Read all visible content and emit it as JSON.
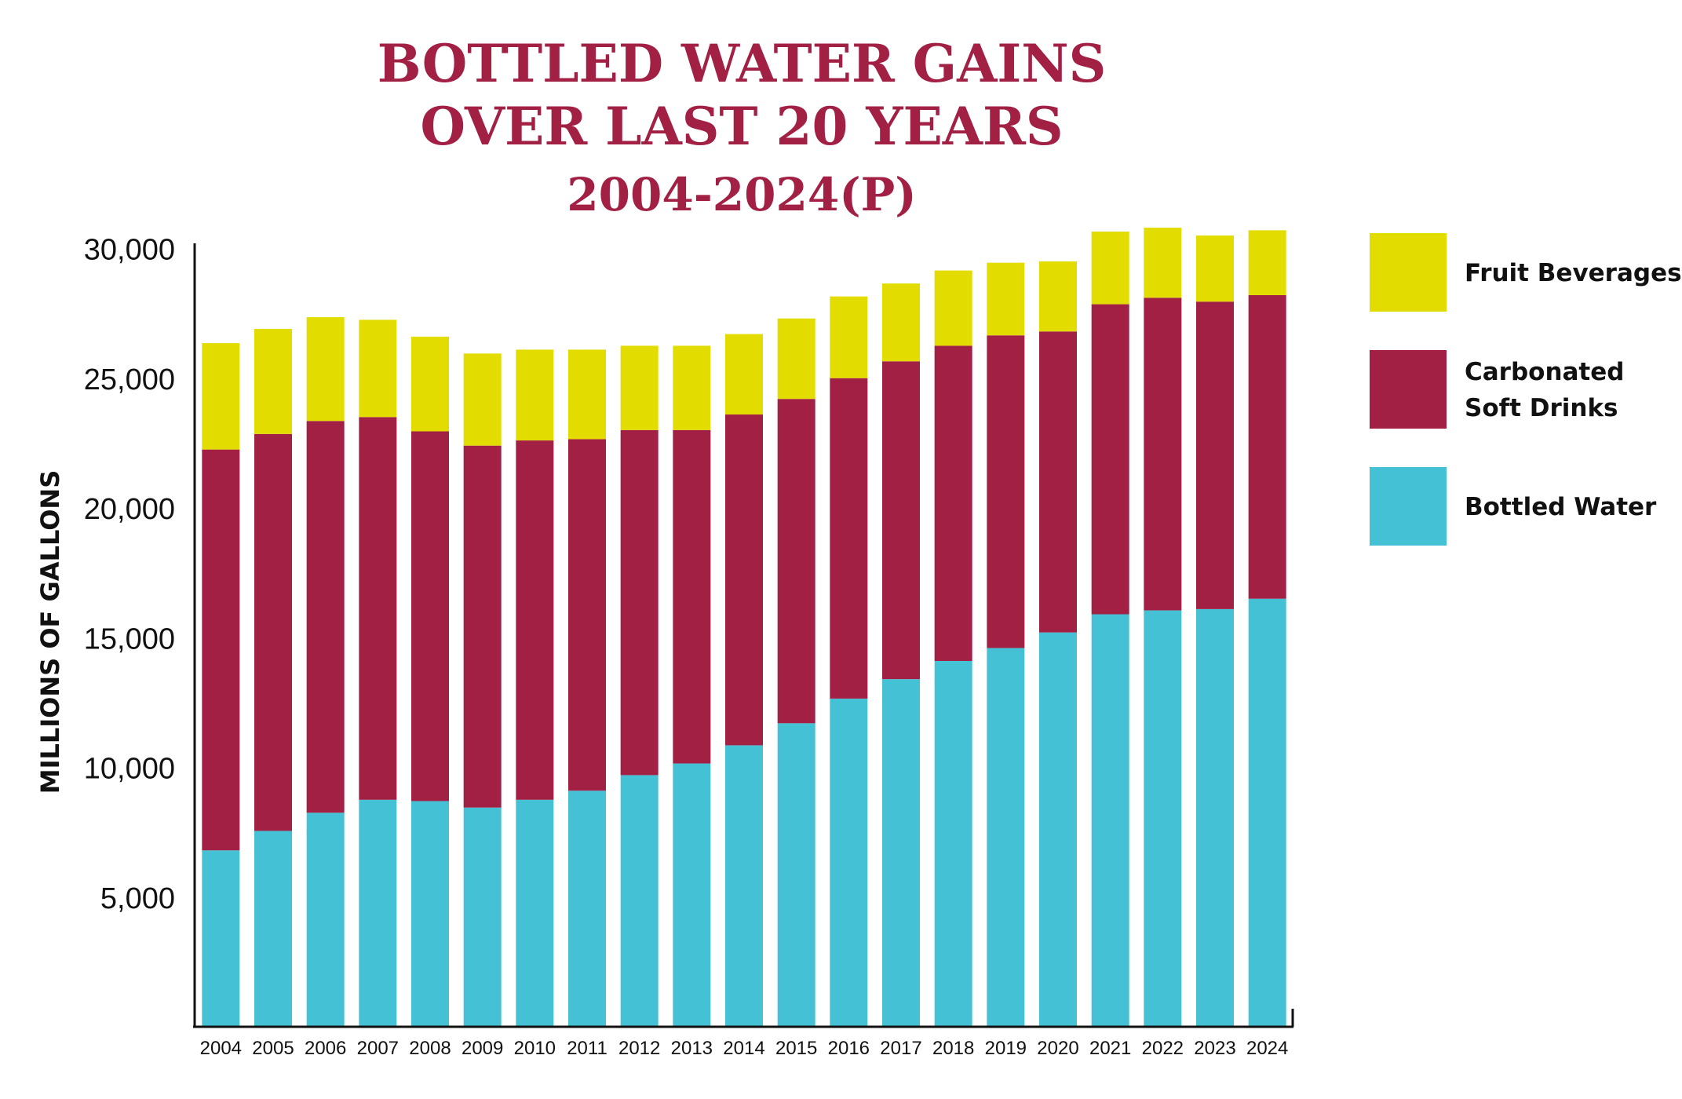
{
  "chart_data": {
    "type": "bar",
    "stacked": true,
    "title": "BOTTLED WATER GAINS",
    "title_line2": "OVER LAST 20 YEARS",
    "subtitle": "2004-2024(P)",
    "xlabel": "",
    "ylabel": "MILLIONS OF GALLONS",
    "ylim": [
      0,
      30000
    ],
    "yticks": [
      5000,
      10000,
      15000,
      20000,
      25000,
      30000
    ],
    "ytick_labels": [
      "5,000",
      "10,000",
      "15,000",
      "20,000",
      "25,000",
      "30,000"
    ],
    "legend_position": "right",
    "categories": [
      "2004",
      "2005",
      "2006",
      "2007",
      "2008",
      "2009",
      "2010",
      "2011",
      "2012",
      "2013",
      "2014",
      "2015",
      "2016",
      "2017",
      "2018",
      "2019",
      "2020",
      "2021",
      "2022",
      "2023",
      "2024"
    ],
    "series": [
      {
        "name": "Bottled Water",
        "color": "#45c1d6",
        "values": [
          6800,
          7550,
          8250,
          8750,
          8700,
          8450,
          8750,
          9100,
          9700,
          10150,
          10850,
          11700,
          12650,
          13400,
          14100,
          14600,
          15200,
          15900,
          16050,
          16100,
          16500
        ]
      },
      {
        "name": "Carbonated Soft Drinks",
        "color": "#a32045",
        "values": [
          15450,
          15300,
          15100,
          14750,
          14250,
          13950,
          13850,
          13550,
          13300,
          12850,
          12750,
          12500,
          12350,
          12250,
          12150,
          12050,
          11600,
          11950,
          12050,
          11850,
          11700
        ]
      },
      {
        "name": "Fruit Beverages",
        "color": "#e2dc00",
        "values": [
          4100,
          4050,
          4000,
          3750,
          3650,
          3550,
          3500,
          3450,
          3250,
          3250,
          3100,
          3100,
          3150,
          3000,
          2900,
          2800,
          2700,
          2800,
          2700,
          2550,
          2500
        ]
      }
    ],
    "legend_order": [
      "Fruit Beverages",
      "Carbonated Soft Drinks",
      "Bottled Water"
    ],
    "legend_labels": {
      "Fruit Beverages": [
        "Fruit Beverages"
      ],
      "Carbonated Soft Drinks": [
        "Carbonated",
        "Soft Drinks"
      ],
      "Bottled Water": [
        "Bottled Water"
      ]
    },
    "title_color": "#a32045"
  }
}
